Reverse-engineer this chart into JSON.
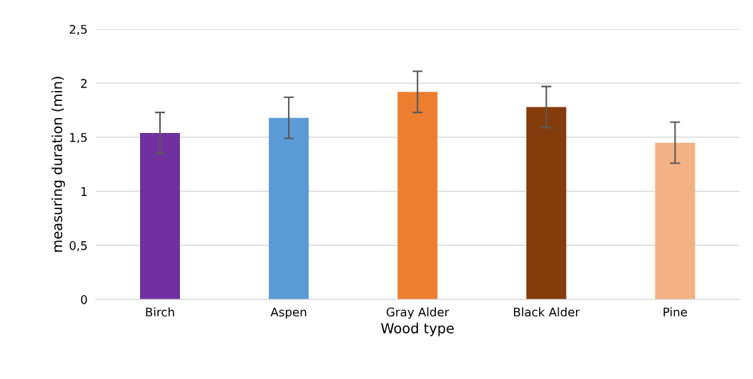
{
  "chart_data": {
    "type": "bar",
    "xlabel": "Wood type",
    "ylabel": "measuring duration (min)",
    "categories": [
      "Birch",
      "Aspen",
      "Gray Alder",
      "Black Alder",
      "Pine"
    ],
    "values": [
      1.54,
      1.68,
      1.92,
      1.78,
      1.45
    ],
    "colors": [
      "#7030a0",
      "#5b9bd5",
      "#ed7d31",
      "#843c0c",
      "#f4b183"
    ],
    "errors": [
      0.19,
      0.19,
      0.19,
      0.19,
      0.19
    ],
    "ylim": [
      0,
      2.5
    ],
    "yticks": [
      0,
      {
        "value": 0.5,
        "label": "0,5"
      },
      1,
      {
        "value": 1.5,
        "label": "1,5"
      },
      2,
      {
        "value": 2.5,
        "label": "2,5"
      }
    ],
    "grid": "y"
  }
}
